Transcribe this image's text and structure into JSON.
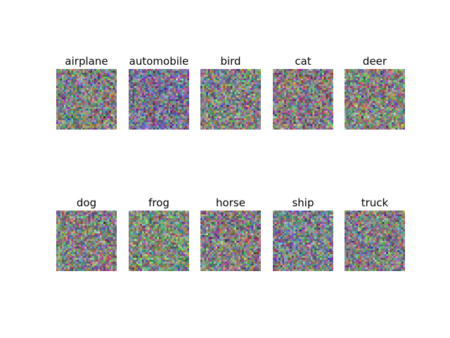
{
  "figure": {
    "panels": [
      {
        "title": "airplane",
        "tint": [
          0,
          0,
          0
        ]
      },
      {
        "title": "automobile",
        "tint": [
          -6,
          -12,
          14
        ]
      },
      {
        "title": "bird",
        "tint": [
          0,
          4,
          -2
        ]
      },
      {
        "title": "cat",
        "tint": [
          6,
          -4,
          -2
        ]
      },
      {
        "title": "deer",
        "tint": [
          2,
          4,
          -4
        ]
      },
      {
        "title": "dog",
        "tint": [
          2,
          0,
          -2
        ]
      },
      {
        "title": "frog",
        "tint": [
          -4,
          10,
          -6
        ]
      },
      {
        "title": "horse",
        "tint": [
          4,
          -2,
          0
        ]
      },
      {
        "title": "ship",
        "tint": [
          -4,
          0,
          8
        ]
      },
      {
        "title": "truck",
        "tint": [
          2,
          -2,
          2
        ]
      }
    ]
  }
}
